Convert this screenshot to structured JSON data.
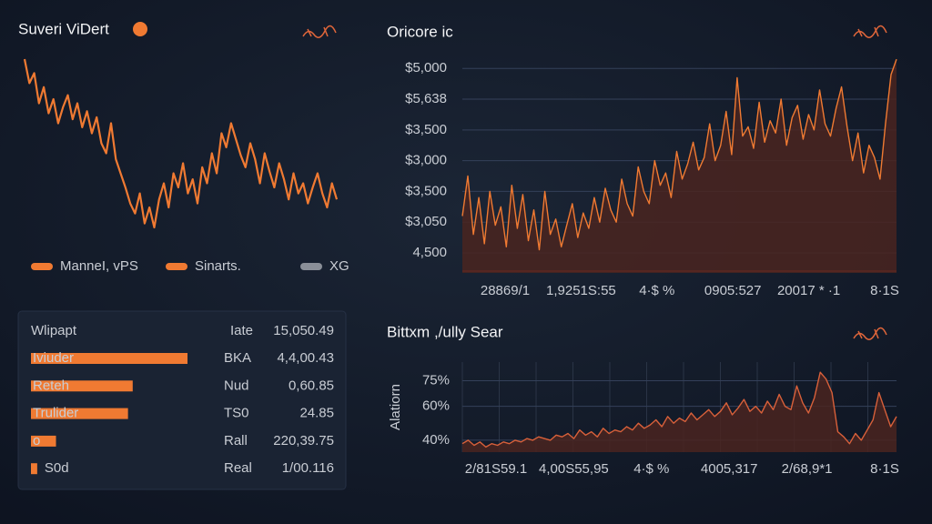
{
  "chart_data": [
    {
      "type": "line",
      "title": "Suveri ViDert",
      "color": "#f07a32",
      "values": [
        92,
        80,
        85,
        70,
        78,
        65,
        72,
        60,
        68,
        74,
        62,
        70,
        58,
        66,
        55,
        63,
        50,
        45,
        60,
        42,
        35,
        28,
        20,
        15,
        25,
        10,
        18,
        8,
        22,
        30,
        18,
        35,
        28,
        40,
        25,
        32,
        20,
        38,
        30,
        45,
        35,
        55,
        48,
        60,
        52,
        44,
        38,
        50,
        42,
        30,
        45,
        36,
        28,
        40,
        32,
        22,
        35,
        25,
        30,
        20,
        28,
        35,
        25,
        18,
        30,
        22
      ],
      "legend": [
        {
          "name": "ManneI, vPS",
          "color": "#f07a32"
        },
        {
          "name": "Sinarts.",
          "color": "#f07a32"
        },
        {
          "name": "XG",
          "color": "#8a8f98"
        }
      ]
    },
    {
      "type": "area",
      "title": "Oricore ic",
      "color": "#f07a32",
      "fill": "#4a2520",
      "grid": true,
      "ylim": [
        -0.65,
        6.45
      ],
      "yticks": [
        {
          "value": 6,
          "label": "$5,000"
        },
        {
          "value": 5,
          "label": "$5,638"
        },
        {
          "value": 4,
          "label": "$3,500"
        },
        {
          "value": 3,
          "label": "$3,000"
        },
        {
          "value": 2,
          "label": "$3,500"
        },
        {
          "value": 1,
          "label": "$3,050"
        },
        {
          "value": 0,
          "label": "4,500"
        }
      ],
      "x_labels": [
        "28869/1",
        "1,9251S:55",
        "4·$ %",
        "0905:527",
        "20017 * ·1",
        "8·1S"
      ],
      "values": [
        1.2,
        2.5,
        0.6,
        1.8,
        0.3,
        2.0,
        0.9,
        1.5,
        0.2,
        2.2,
        0.8,
        1.9,
        0.4,
        1.4,
        0.1,
        2.0,
        0.6,
        1.1,
        0.2,
        0.9,
        1.6,
        0.5,
        1.3,
        0.8,
        1.8,
        1.0,
        2.1,
        1.4,
        1.0,
        2.4,
        1.6,
        1.2,
        2.8,
        2.0,
        1.6,
        3.0,
        2.2,
        2.6,
        1.8,
        3.3,
        2.4,
        2.9,
        3.6,
        2.7,
        3.1,
        4.2,
        3.0,
        3.5,
        4.6,
        3.2,
        5.7,
        3.8,
        4.1,
        3.4,
        4.9,
        3.6,
        4.3,
        3.9,
        5.0,
        3.5,
        4.4,
        4.8,
        3.7,
        4.5,
        4.0,
        5.3,
        4.2,
        3.8,
        4.7,
        5.4,
        4.1,
        3.0,
        3.9,
        2.6,
        3.5,
        3.1,
        2.4,
        4.2,
        5.8,
        6.3
      ]
    },
    {
      "type": "area",
      "title": "Bittxm ,/ully Sear",
      "y_label": "Alatiorn",
      "color": "#d8603a",
      "fill": "#4a2520",
      "grid": true,
      "ylim": [
        33,
        86
      ],
      "yticks": [
        {
          "value": 75,
          "label": "75%"
        },
        {
          "value": 60,
          "label": "60%"
        },
        {
          "value": 40,
          "label": "40%"
        }
      ],
      "x_labels": [
        "2/81S59.1",
        "4,00S55,95",
        "4·$ %",
        "4005,317",
        "2/68,9*1",
        "8·1S"
      ],
      "values": [
        38,
        40,
        37,
        39,
        36,
        38,
        37,
        39,
        38,
        40,
        39,
        41,
        40,
        42,
        41,
        40,
        43,
        42,
        44,
        41,
        46,
        43,
        45,
        42,
        47,
        44,
        46,
        45,
        48,
        46,
        50,
        47,
        49,
        52,
        48,
        54,
        50,
        53,
        51,
        56,
        52,
        55,
        58,
        54,
        57,
        62,
        55,
        59,
        64,
        57,
        60,
        56,
        63,
        58,
        67,
        60,
        58,
        72,
        62,
        56,
        65,
        80,
        76,
        68,
        45,
        42,
        38,
        44,
        40,
        46,
        52,
        68,
        58,
        48,
        54
      ]
    }
  ],
  "table": {
    "header": [
      "Wlipapt",
      "Iate",
      "15,050.49"
    ],
    "bar_color": "#f07a32",
    "rows": [
      {
        "label": "Iviuder",
        "bar": 100,
        "col": "BKA",
        "value": "4,4,00.43"
      },
      {
        "label": "Reteh",
        "bar": 65,
        "col": "Nud",
        "value": "0,60.85"
      },
      {
        "label": "Trulider",
        "bar": 62,
        "col": "TS0",
        "value": "24.85"
      },
      {
        "label": "o",
        "bar": 16,
        "col": "Rall",
        "value": "220,39.75"
      },
      {
        "label": "S0d",
        "bar": 4,
        "col": "Real",
        "value": "1/00.116"
      }
    ]
  }
}
